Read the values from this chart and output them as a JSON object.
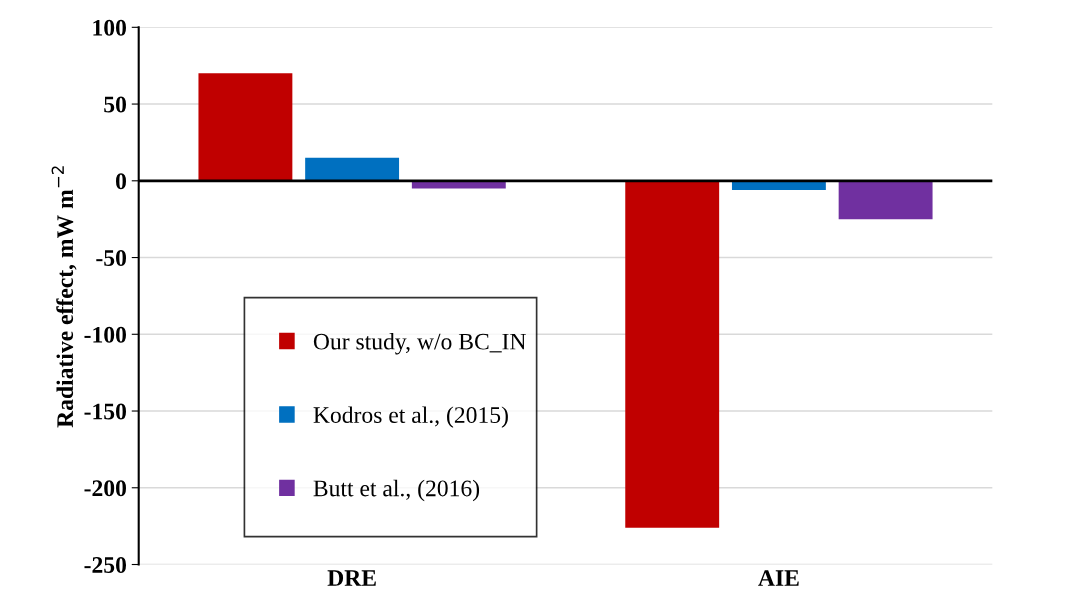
{
  "chart_data": {
    "type": "bar",
    "categories": [
      "DRE",
      "AIE"
    ],
    "ylabel": "Radiative effect, mW m$^{−2}$",
    "series": [
      {
        "name": "Our study, w/o BC_IN",
        "color": "#c00000",
        "values": [
          70,
          -226
        ]
      },
      {
        "name": "Kodros et al., (2015)",
        "color": "#0070c0",
        "values": [
          15,
          -6
        ]
      },
      {
        "name": "Butt et al., (2016)",
        "color": "#7030a0",
        "values": [
          -5,
          -25
        ]
      }
    ],
    "ylim": [
      -250,
      100
    ],
    "yticks": [
      -250,
      -200,
      -150,
      -100,
      -50,
      0,
      50,
      100
    ],
    "grid": "y",
    "legend": "bottom left"
  }
}
